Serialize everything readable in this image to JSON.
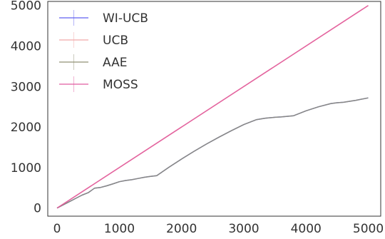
{
  "chart_data": {
    "type": "line",
    "title": "",
    "xlabel": "",
    "ylabel": "",
    "xlim": [
      -150,
      5200
    ],
    "ylim": [
      -200,
      5100
    ],
    "xticks": [
      0,
      1000,
      2000,
      3000,
      4000,
      5000
    ],
    "yticks": [
      0,
      1000,
      2000,
      3000,
      4000,
      5000
    ],
    "xtick_labels": [
      "0",
      "1000",
      "2000",
      "3000",
      "4000",
      "5000"
    ],
    "ytick_labels": [
      "0",
      "1000",
      "2000",
      "3000",
      "4000",
      "5000"
    ],
    "grid": false,
    "legend_position": "top-left",
    "series": [
      {
        "name": "WI-UCB",
        "color": "#5a5af0",
        "x": [
          0,
          100,
          200,
          300,
          400,
          500,
          600,
          700,
          800,
          900,
          1000,
          1100,
          1200,
          1300,
          1400,
          1500,
          1600,
          1800,
          2000,
          2200,
          2400,
          2600,
          2800,
          3000,
          3200,
          3350,
          3500,
          3600,
          3800,
          4000,
          4200,
          4400,
          4500,
          4600,
          4800,
          5000
        ],
        "y": [
          0,
          80,
          160,
          240,
          320,
          380,
          490,
          510,
          550,
          600,
          650,
          680,
          700,
          730,
          760,
          780,
          800,
          1010,
          1210,
          1400,
          1580,
          1750,
          1910,
          2060,
          2180,
          2220,
          2240,
          2250,
          2280,
          2400,
          2500,
          2580,
          2600,
          2610,
          2660,
          2720
        ]
      },
      {
        "name": "UCB",
        "color": "#f0a5a5",
        "x": [
          0,
          5000
        ],
        "y": [
          0,
          5000
        ]
      },
      {
        "name": "AAE",
        "color": "#8c8c6e",
        "x": [
          0,
          100,
          200,
          300,
          400,
          500,
          600,
          700,
          800,
          900,
          1000,
          1100,
          1200,
          1300,
          1400,
          1500,
          1600,
          1800,
          2000,
          2200,
          2400,
          2600,
          2800,
          3000,
          3200,
          3350,
          3500,
          3600,
          3800,
          4000,
          4200,
          4400,
          4500,
          4600,
          4800,
          5000
        ],
        "y": [
          0,
          80,
          160,
          240,
          320,
          380,
          490,
          510,
          550,
          600,
          650,
          680,
          700,
          730,
          760,
          780,
          800,
          1010,
          1210,
          1400,
          1580,
          1750,
          1910,
          2060,
          2180,
          2220,
          2240,
          2250,
          2280,
          2400,
          2500,
          2580,
          2600,
          2610,
          2660,
          2720
        ]
      },
      {
        "name": "MOSS",
        "color": "#e0559c",
        "x": [
          0,
          5000
        ],
        "y": [
          0,
          5000
        ]
      }
    ]
  }
}
